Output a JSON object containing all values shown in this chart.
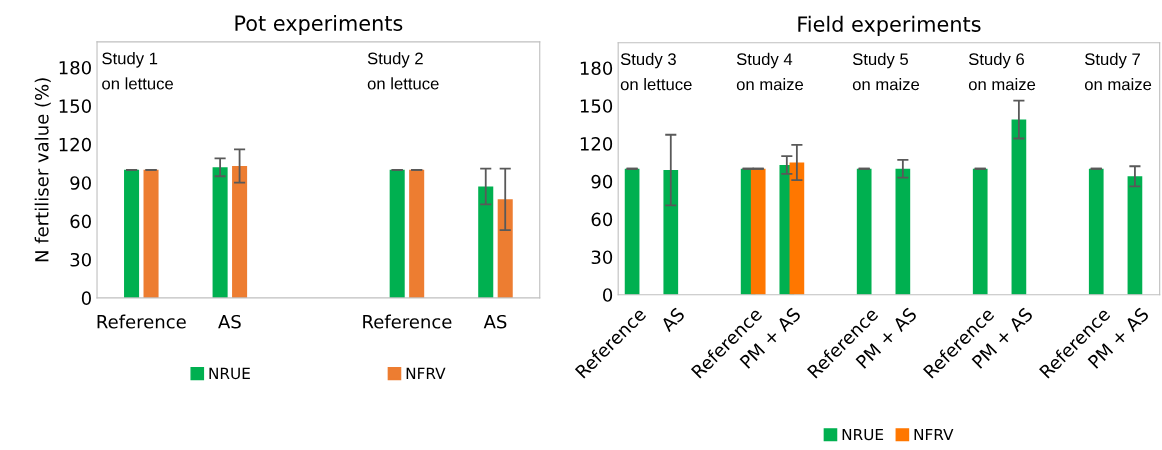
{
  "chart_data": [
    {
      "type": "bar",
      "title": "Pot experiments",
      "ylabel": "N fertiliser value (%)",
      "categories": [
        "Reference",
        "AS",
        null,
        "Reference",
        "AS"
      ],
      "series": [
        {
          "name": "NRUE",
          "color": "#00b050",
          "values": [
            100,
            102,
            null,
            100,
            87
          ],
          "errors": [
            0,
            7,
            null,
            0,
            14
          ]
        },
        {
          "name": "NFRV",
          "color": "#ed7d31",
          "values": [
            100,
            103,
            null,
            100,
            77
          ],
          "errors": [
            0,
            13,
            null,
            0,
            24
          ]
        }
      ],
      "ylim": [
        0,
        200
      ],
      "yticks": [
        0,
        30,
        60,
        90,
        120,
        150,
        180
      ],
      "grid": false,
      "legend": "bottom",
      "annotations": [
        "Study 1\non lettuce",
        "Study 2\non lettuce"
      ]
    },
    {
      "type": "bar",
      "title": "Field experiments",
      "categories": [
        "Reference",
        "AS",
        null,
        "Reference",
        "PM + AS",
        null,
        "Reference",
        "PM + AS",
        null,
        "Reference",
        "PM + AS",
        null,
        "Reference",
        "PM + AS"
      ],
      "series": [
        {
          "name": "NRUE",
          "color": "#00b050",
          "values": [
            100,
            99,
            null,
            100,
            103,
            null,
            100,
            100,
            null,
            100,
            139,
            null,
            100,
            94
          ],
          "errors": [
            0,
            28,
            null,
            0,
            7,
            null,
            0,
            7,
            null,
            0,
            15,
            null,
            0,
            8
          ]
        },
        {
          "name": "NFRV",
          "color": "#ff7700",
          "values": [
            null,
            null,
            null,
            100,
            105,
            null,
            null,
            null,
            null,
            null,
            null,
            null,
            null,
            null
          ],
          "errors": [
            null,
            null,
            null,
            0,
            14,
            null,
            null,
            null,
            null,
            null,
            null,
            null,
            null,
            null
          ]
        }
      ],
      "ylim": [
        0,
        200
      ],
      "yticks": [
        0,
        30,
        60,
        90,
        120,
        150,
        180
      ],
      "grid": false,
      "legend": "bottom",
      "annotations": [
        "Study 3\non lettuce",
        "Study 4\non maize",
        "Study 5\non maize",
        "Study 6\non maize",
        "Study 7\non maize"
      ]
    }
  ]
}
